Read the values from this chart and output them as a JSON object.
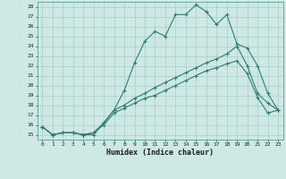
{
  "xlabel": "Humidex (Indice chaleur)",
  "bg_color": "#cde8e5",
  "line_color": "#2e7d72",
  "grid_color": "#a8ceca",
  "xlim": [
    -0.5,
    23.5
  ],
  "ylim": [
    14.5,
    28.5
  ],
  "xticks": [
    0,
    1,
    2,
    3,
    4,
    5,
    6,
    7,
    8,
    9,
    10,
    11,
    12,
    13,
    14,
    15,
    16,
    17,
    18,
    19,
    20,
    21,
    22,
    23
  ],
  "yticks": [
    15,
    16,
    17,
    18,
    19,
    20,
    21,
    22,
    23,
    24,
    25,
    26,
    27,
    28
  ],
  "line1_x": [
    0,
    1,
    2,
    3,
    4,
    5,
    6,
    7,
    8,
    9,
    10,
    11,
    12,
    13,
    14,
    15,
    16,
    17,
    18,
    19,
    20,
    21,
    22,
    23
  ],
  "line1_y": [
    15.8,
    15.0,
    15.2,
    15.2,
    15.0,
    15.0,
    16.2,
    17.5,
    19.5,
    22.3,
    24.5,
    25.5,
    25.0,
    27.2,
    27.2,
    28.2,
    27.5,
    26.2,
    27.2,
    24.2,
    23.8,
    22.0,
    19.2,
    17.5
  ],
  "line2_x": [
    0,
    1,
    2,
    3,
    4,
    5,
    6,
    7,
    8,
    9,
    10,
    11,
    12,
    13,
    14,
    15,
    16,
    17,
    18,
    19,
    20,
    21,
    22,
    23
  ],
  "line2_y": [
    15.8,
    15.0,
    15.2,
    15.2,
    15.0,
    15.2,
    16.2,
    17.5,
    18.0,
    18.7,
    19.2,
    19.8,
    20.3,
    20.8,
    21.3,
    21.8,
    22.3,
    22.7,
    23.2,
    24.0,
    22.0,
    19.2,
    18.2,
    17.5
  ],
  "line3_x": [
    0,
    1,
    2,
    3,
    4,
    5,
    6,
    7,
    8,
    9,
    10,
    11,
    12,
    13,
    14,
    15,
    16,
    17,
    18,
    19,
    20,
    21,
    22,
    23
  ],
  "line3_y": [
    15.8,
    15.0,
    15.2,
    15.2,
    15.0,
    15.2,
    16.0,
    17.2,
    17.7,
    18.2,
    18.7,
    19.0,
    19.5,
    20.0,
    20.5,
    21.0,
    21.5,
    21.8,
    22.2,
    22.5,
    21.2,
    18.8,
    17.2,
    17.5
  ]
}
